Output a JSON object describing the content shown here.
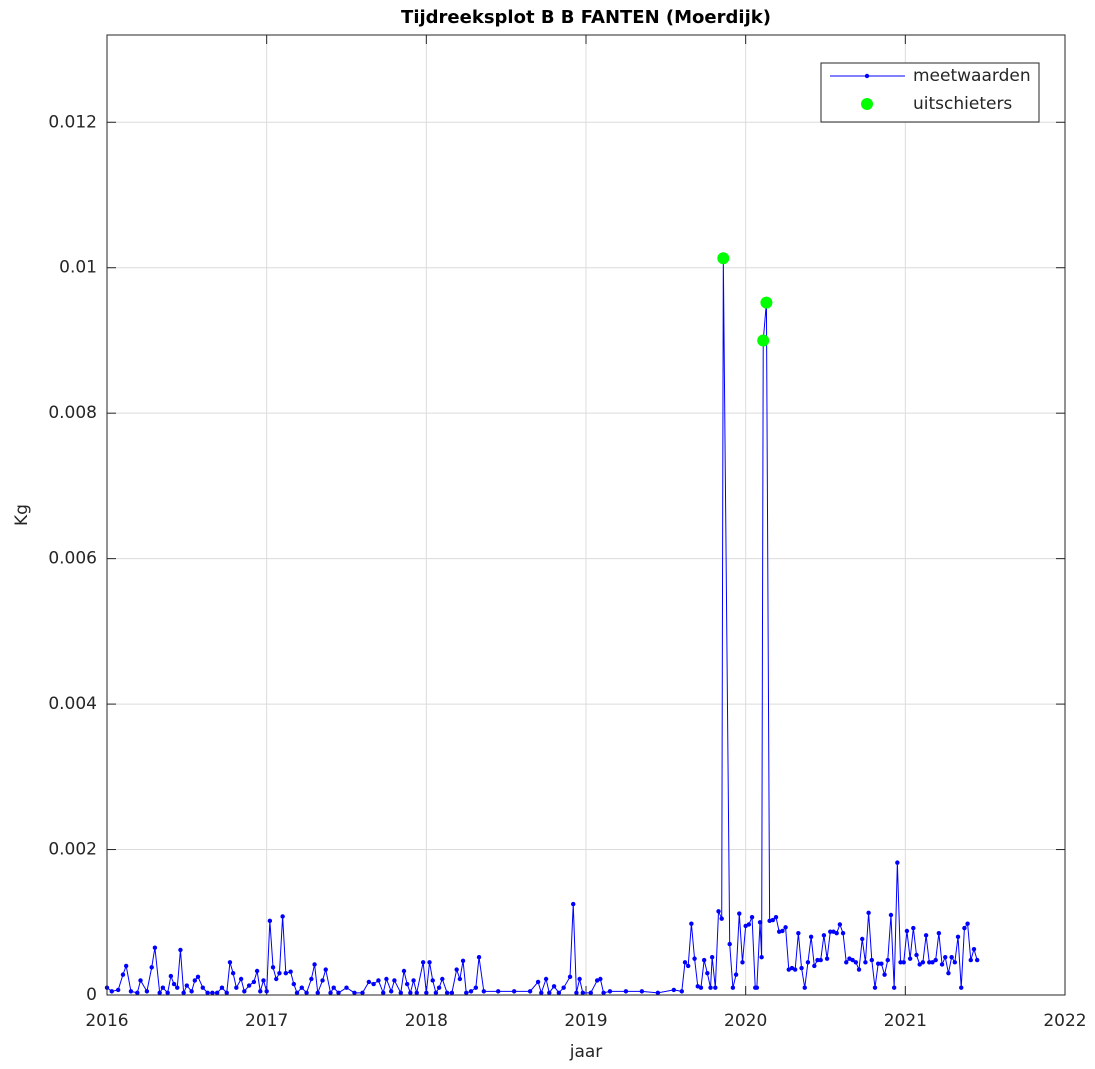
{
  "chart_data": {
    "type": "line",
    "title": "Tijdreeksplot B B FANTEN (Moerdijk)",
    "x_label": "jaar",
    "y_label": "Kg",
    "xlim": [
      2016,
      2022
    ],
    "xticks": [
      2016,
      2017,
      2018,
      2019,
      2020,
      2021,
      2022
    ],
    "ylim": [
      0,
      0.0132
    ],
    "yticks": [
      0,
      0.002,
      0.004,
      0.006,
      0.008,
      0.01,
      0.012
    ],
    "grid": true,
    "legend": "upper right",
    "series": [
      {
        "name": "meetwaarden",
        "color": "#0000ff",
        "x": [
          2016.0,
          2016.03,
          2016.07,
          2016.1,
          2016.12,
          2016.15,
          2016.19,
          2016.21,
          2016.25,
          2016.28,
          2016.3,
          2016.33,
          2016.35,
          2016.38,
          2016.4,
          2016.42,
          2016.44,
          2016.46,
          2016.48,
          2016.5,
          2016.53,
          2016.55,
          2016.57,
          2016.6,
          2016.63,
          2016.66,
          2016.69,
          2016.72,
          2016.75,
          2016.77,
          2016.79,
          2016.81,
          2016.84,
          2016.86,
          2016.89,
          2016.92,
          2016.94,
          2016.96,
          2016.98,
          2017.0,
          2017.02,
          2017.04,
          2017.06,
          2017.08,
          2017.1,
          2017.12,
          2017.15,
          2017.17,
          2017.19,
          2017.22,
          2017.25,
          2017.28,
          2017.3,
          2017.32,
          2017.35,
          2017.37,
          2017.4,
          2017.42,
          2017.45,
          2017.5,
          2017.55,
          2017.6,
          2017.64,
          2017.67,
          2017.7,
          2017.73,
          2017.75,
          2017.78,
          2017.8,
          2017.84,
          2017.86,
          2017.88,
          2017.9,
          2017.92,
          2017.94,
          2017.98,
          2018.0,
          2018.02,
          2018.04,
          2018.06,
          2018.08,
          2018.1,
          2018.13,
          2018.16,
          2018.19,
          2018.21,
          2018.23,
          2018.25,
          2018.28,
          2018.31,
          2018.33,
          2018.36,
          2018.45,
          2018.55,
          2018.65,
          2018.7,
          2018.72,
          2018.75,
          2018.77,
          2018.8,
          2018.83,
          2018.86,
          2018.9,
          2018.92,
          2018.94,
          2018.96,
          2018.98,
          2019.03,
          2019.07,
          2019.09,
          2019.11,
          2019.15,
          2019.25,
          2019.35,
          2019.45,
          2019.55,
          2019.6,
          2019.62,
          2019.64,
          2019.66,
          2019.68,
          2019.7,
          2019.72,
          2019.74,
          2019.76,
          2019.78,
          2019.79,
          2019.81,
          2019.83,
          2019.85,
          2019.86,
          2019.9,
          2019.92,
          2019.94,
          2019.96,
          2019.98,
          2020.0,
          2020.02,
          2020.04,
          2020.06,
          2020.07,
          2020.09,
          2020.1,
          2020.11,
          2020.13,
          2020.15,
          2020.17,
          2020.19,
          2020.21,
          2020.23,
          2020.25,
          2020.27,
          2020.29,
          2020.31,
          2020.33,
          2020.35,
          2020.37,
          2020.39,
          2020.41,
          2020.43,
          2020.45,
          2020.47,
          2020.49,
          2020.51,
          2020.53,
          2020.55,
          2020.57,
          2020.59,
          2020.61,
          2020.63,
          2020.65,
          2020.67,
          2020.69,
          2020.71,
          2020.73,
          2020.75,
          2020.77,
          2020.79,
          2020.81,
          2020.83,
          2020.85,
          2020.87,
          2020.89,
          2020.91,
          2020.93,
          2020.95,
          2020.97,
          2020.99,
          2021.01,
          2021.03,
          2021.05,
          2021.07,
          2021.09,
          2021.11,
          2021.13,
          2021.15,
          2021.17,
          2021.19,
          2021.21,
          2021.23,
          2021.25,
          2021.27,
          2021.29,
          2021.31,
          2021.33,
          2021.35,
          2021.37,
          2021.39,
          2021.41,
          2021.43,
          2021.45
        ],
        "values": [
          0.0001,
          5e-05,
          7e-05,
          0.00028,
          0.0004,
          5e-05,
          3e-05,
          0.0002,
          5e-05,
          0.00038,
          0.00065,
          3e-05,
          0.0001,
          3e-05,
          0.00026,
          0.00015,
          0.0001,
          0.00062,
          3e-05,
          0.00013,
          5e-05,
          0.0002,
          0.00025,
          0.0001,
          3e-05,
          3e-05,
          3e-05,
          0.0001,
          3e-05,
          0.00045,
          0.0003,
          0.0001,
          0.00022,
          5e-05,
          0.00013,
          0.00018,
          0.00033,
          5e-05,
          0.0002,
          5e-05,
          0.00102,
          0.00038,
          0.00022,
          0.0003,
          0.00108,
          0.0003,
          0.00032,
          0.00015,
          3e-05,
          0.0001,
          3e-05,
          0.00022,
          0.00042,
          3e-05,
          0.0002,
          0.00035,
          3e-05,
          0.0001,
          3e-05,
          0.0001,
          3e-05,
          3e-05,
          0.00018,
          0.00015,
          0.0002,
          3e-05,
          0.00022,
          5e-05,
          0.0002,
          3e-05,
          0.00033,
          0.00015,
          3e-05,
          0.0002,
          3e-05,
          0.00045,
          3e-05,
          0.00045,
          0.0002,
          3e-05,
          0.0001,
          0.00022,
          3e-05,
          3e-05,
          0.00035,
          0.00022,
          0.00047,
          3e-05,
          5e-05,
          0.0001,
          0.00052,
          5e-05,
          5e-05,
          5e-05,
          5e-05,
          0.00018,
          3e-05,
          0.00022,
          3e-05,
          0.00012,
          3e-05,
          0.0001,
          0.00025,
          0.00125,
          3e-05,
          0.00022,
          3e-05,
          3e-05,
          0.0002,
          0.00022,
          3e-05,
          5e-05,
          5e-05,
          5e-05,
          3e-05,
          7e-05,
          5e-05,
          0.00045,
          0.0004,
          0.00098,
          0.0005,
          0.00012,
          0.0001,
          0.00048,
          0.0003,
          0.0001,
          0.00052,
          0.0001,
          0.00115,
          0.00105,
          0.01013,
          0.0007,
          0.0001,
          0.00028,
          0.00112,
          0.00045,
          0.00095,
          0.00097,
          0.00107,
          0.0001,
          0.0001,
          0.001,
          0.00052,
          0.009,
          0.00952,
          0.00102,
          0.00103,
          0.00107,
          0.00087,
          0.00088,
          0.00093,
          0.00035,
          0.00037,
          0.00035,
          0.00085,
          0.00037,
          0.0001,
          0.00045,
          0.0008,
          0.0004,
          0.00048,
          0.00048,
          0.00082,
          0.0005,
          0.00087,
          0.00087,
          0.00085,
          0.00097,
          0.00085,
          0.00045,
          0.0005,
          0.00048,
          0.00045,
          0.00035,
          0.00077,
          0.00045,
          0.00113,
          0.00048,
          0.0001,
          0.00043,
          0.00043,
          0.00028,
          0.00048,
          0.0011,
          0.0001,
          0.00182,
          0.00045,
          0.00045,
          0.00088,
          0.0005,
          0.00092,
          0.00055,
          0.00042,
          0.00045,
          0.00082,
          0.00045,
          0.00045,
          0.00048,
          0.00085,
          0.00042,
          0.00052,
          0.0003,
          0.00052,
          0.00045,
          0.0008,
          0.0001,
          0.00092,
          0.00098,
          0.00048,
          0.00063,
          0.00048
        ]
      },
      {
        "name": "uitschieters",
        "color": "#00ff00",
        "x": [
          2019.86,
          2020.11,
          2020.13
        ],
        "values": [
          0.01013,
          0.009,
          0.00952
        ]
      }
    ]
  }
}
